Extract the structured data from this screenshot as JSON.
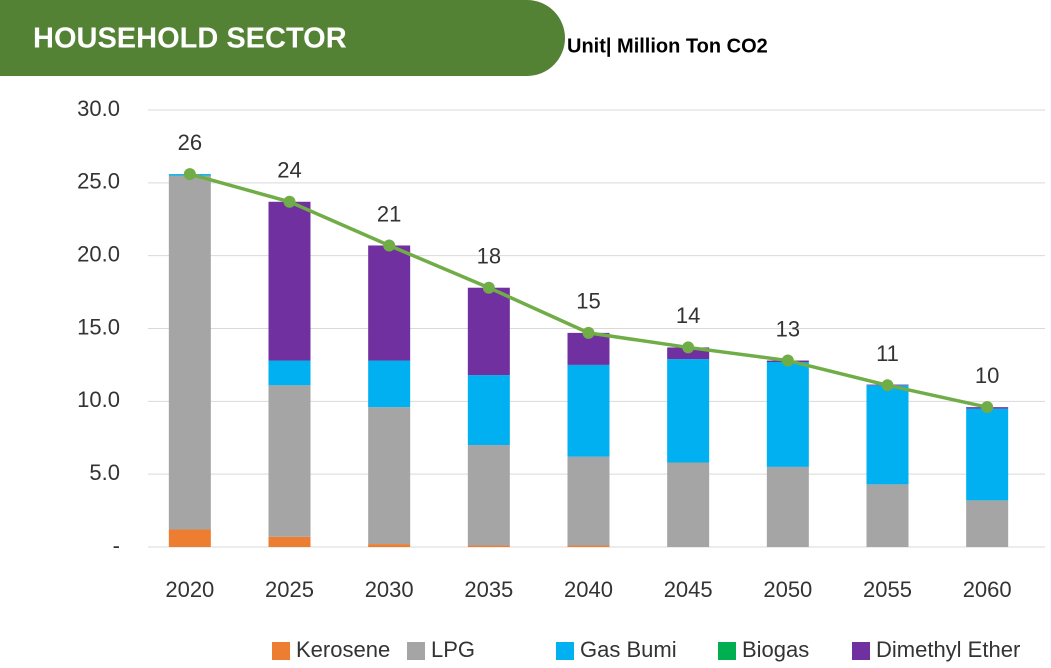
{
  "chart_data": {
    "type": "bar",
    "stacked": true,
    "title": "HOUSEHOLD SECTOR",
    "subtitle": "Unit| Million Ton CO2",
    "categories": [
      "2020",
      "2025",
      "2030",
      "2035",
      "2040",
      "2045",
      "2050",
      "2055",
      "2060"
    ],
    "series": [
      {
        "name": "Kerosene",
        "color": "#ed7d31",
        "values": [
          1.2,
          0.7,
          0.2,
          0.1,
          0.1,
          0,
          0,
          0,
          0
        ]
      },
      {
        "name": "LPG",
        "color": "#a5a5a5",
        "values": [
          24.3,
          10.4,
          9.4,
          6.9,
          6.1,
          5.8,
          5.5,
          4.3,
          3.2
        ]
      },
      {
        "name": "Gas Bumi",
        "color": "#00b0f0",
        "values": [
          0.1,
          1.7,
          3.2,
          4.8,
          6.3,
          7.1,
          7.2,
          6.8,
          6.3
        ]
      },
      {
        "name": "Biogas",
        "color": "#00b050",
        "values": [
          0,
          0,
          0,
          0,
          0,
          0,
          0,
          0,
          0
        ]
      },
      {
        "name": "Dimethyl Ether",
        "color": "#7030a0",
        "values": [
          0,
          10.9,
          7.9,
          6.0,
          2.2,
          0.8,
          0.1,
          0.05,
          0.1
        ]
      }
    ],
    "total": {
      "color": "#70ad47",
      "values": [
        25.6,
        23.7,
        20.7,
        17.8,
        14.7,
        13.7,
        12.8,
        11.1,
        9.6
      ],
      "value_labels": [
        "26",
        "24",
        "21",
        "18",
        "15",
        "14",
        "13",
        "11",
        "10"
      ]
    },
    "ylim": [
      0,
      30
    ],
    "yticks": [
      {
        "value": 0,
        "label": "-"
      },
      {
        "value": 5,
        "label": "5.0"
      },
      {
        "value": 10,
        "label": "10.0"
      },
      {
        "value": 15,
        "label": "15.0"
      },
      {
        "value": 20,
        "label": "20.0"
      },
      {
        "value": 25,
        "label": "25.0"
      },
      {
        "value": 30,
        "label": "30.0"
      }
    ],
    "grid": true,
    "legend": "bottom"
  }
}
